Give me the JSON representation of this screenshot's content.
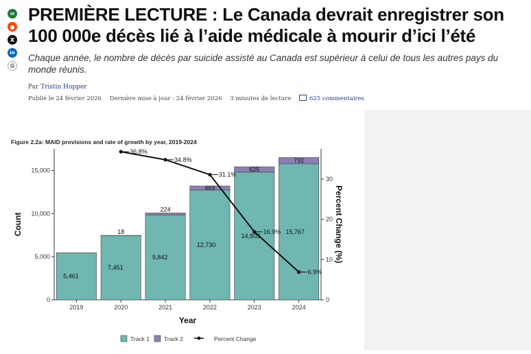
{
  "share": [
    {
      "name": "mail-icon",
      "glyph": "✉"
    },
    {
      "name": "reddit-icon",
      "glyph": "●"
    },
    {
      "name": "x-icon",
      "glyph": "X"
    },
    {
      "name": "linkedin-icon",
      "glyph": "in"
    },
    {
      "name": "print-icon",
      "glyph": "⎙"
    }
  ],
  "article": {
    "title": "PREMIÈRE LECTURE : Le Canada devrait enregistrer son 100 000e décès lié à l’aide médicale à mourir d’ici l’été",
    "dek": "Chaque année, le nombre de décès par suicide assisté au Canada est supérieur à celui de tous les autres pays du monde réunis.",
    "by_prefix": "Par",
    "author": "Tristin Hopper",
    "published": "Publié le 24 février 2026",
    "updated": "Dernière mise à jour : 24 février 2026",
    "read_time": "3 minutes de lecture",
    "comments": "625 commentaires"
  },
  "chart_data": {
    "type": "bar",
    "title": "Figure 2.2a: MAID provisions and rate of growth by year, 2019-2024",
    "xlabel": "Year",
    "ylabel": "Count",
    "y2label": "Percent Change (%)",
    "categories": [
      "2019",
      "2020",
      "2021",
      "2022",
      "2023",
      "2024"
    ],
    "series": [
      {
        "name": "Track 1",
        "color": "#6fb7b0",
        "values": [
          5461,
          7451,
          9842,
          12730,
          14802,
          15767
        ],
        "labels": [
          "5,461",
          "7,451",
          "9,842",
          "12,730",
          "14,802",
          "15,767"
        ]
      },
      {
        "name": "Track 2",
        "color": "#8b7fb5",
        "values": [
          0,
          18,
          224,
          469,
          625,
          732
        ],
        "labels": [
          "",
          "18",
          "224",
          "469",
          "625",
          "732"
        ]
      }
    ],
    "line": {
      "name": "Percent Change",
      "color": "#111111",
      "x": [
        "2020",
        "2021",
        "2022",
        "2023",
        "2024"
      ],
      "values": [
        36.8,
        34.8,
        31.1,
        16.9,
        6.9
      ],
      "labels": [
        "36.8%",
        "34.8%",
        "31.1%",
        "16.9%",
        "6.9%"
      ]
    },
    "ylim": [
      0,
      17500
    ],
    "yticks": [
      0,
      5000,
      10000,
      15000
    ],
    "ytick_labels": [
      "0",
      "5,000",
      "10,000",
      "15,000"
    ],
    "y2lim": [
      0,
      37.5
    ],
    "y2ticks": [
      0,
      10,
      20,
      30
    ],
    "legend_position": "bottom"
  }
}
